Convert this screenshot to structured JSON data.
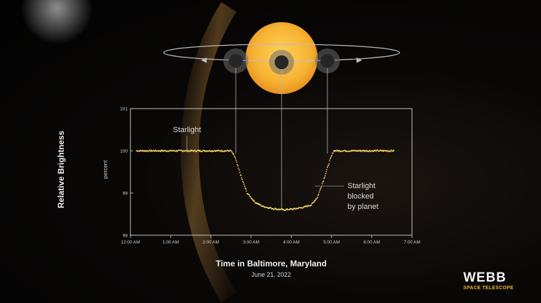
{
  "chart_data": {
    "type": "scatter",
    "ylabel": "Relative Brightness",
    "yunit": "percent",
    "xlabel": "Time in Baltimore, Maryland",
    "subtitle": "June 21, 2022",
    "ylim": [
      98,
      101
    ],
    "yticks": [
      "98",
      "99",
      "100",
      "101"
    ],
    "xticks": [
      "12:00 AM",
      "1:00 AM",
      "2:00 AM",
      "3:00 AM",
      "4:00 AM",
      "5:00 AM",
      "6:00 AM",
      "7:00 AM"
    ],
    "xlim_hours": [
      0,
      7
    ],
    "series": [
      {
        "x_hours": [
          0.15,
          2.5,
          2.6,
          2.75,
          2.9,
          3.1,
          3.3,
          3.55,
          3.8,
          4.05,
          4.3,
          4.5,
          4.65,
          4.8,
          4.95,
          5.05,
          6.55
        ],
        "y": [
          100.0,
          100.0,
          99.85,
          99.4,
          99.0,
          98.78,
          98.68,
          98.63,
          98.6,
          98.62,
          98.66,
          98.72,
          98.9,
          99.3,
          99.75,
          100.0,
          100.0
        ]
      }
    ],
    "annotations": [
      {
        "text": "Starlight",
        "at_hours": 1.2
      },
      {
        "text": "Starlight\nblocked\nby planet",
        "at_hours": 4.65
      }
    ]
  },
  "branding": {
    "logo_word": "WEBB",
    "logo_sub": "SPACE TELESCOPE"
  },
  "colors": {
    "star": "#f7b233",
    "data": "#f2d56a",
    "axis": "#d9d9d9",
    "logo_accent": "#e9b42a"
  }
}
